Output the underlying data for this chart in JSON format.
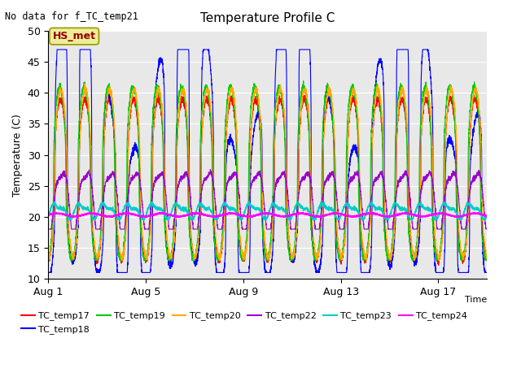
{
  "title": "Temperature Profile C",
  "subtitle": "No data for f_TC_temp21",
  "xlabel": "Time",
  "ylabel": "Temperature (C)",
  "ylim": [
    10,
    50
  ],
  "yticks": [
    10,
    15,
    20,
    25,
    30,
    35,
    40,
    45,
    50
  ],
  "xtick_labels": [
    "Aug 1",
    "Aug 5",
    "Aug 9",
    "Aug 13",
    "Aug 17"
  ],
  "xtick_positions": [
    0,
    4,
    8,
    12,
    16
  ],
  "n_days": 18,
  "bg_color": "#e8e8e8",
  "annotation_box": "HS_met",
  "annotation_box_color": "#eeee99",
  "annotation_text_color": "#990000",
  "series_colors": {
    "TC_temp17": "#ff0000",
    "TC_temp18": "#0000ff",
    "TC_temp19": "#00cc00",
    "TC_temp20": "#ffaa00",
    "TC_temp22": "#9900cc",
    "TC_temp23": "#00cccc",
    "TC_temp24": "#ff00ff"
  },
  "legend_order": [
    "TC_temp17",
    "TC_temp18",
    "TC_temp19",
    "TC_temp20",
    "TC_temp22",
    "TC_temp23",
    "TC_temp24"
  ],
  "figsize": [
    6.4,
    4.8
  ],
  "dpi": 100
}
